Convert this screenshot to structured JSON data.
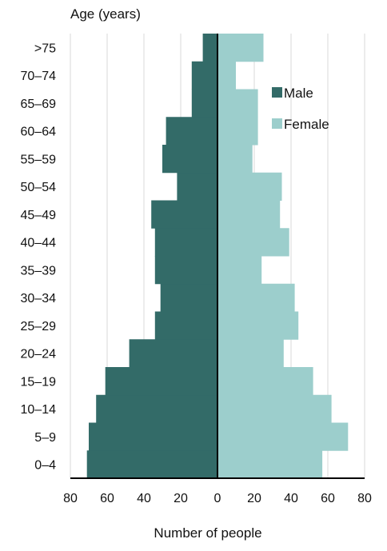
{
  "chart_data": {
    "type": "bar",
    "orientation": "horizontal-population-pyramid",
    "ylabel": "Age (years)",
    "xlabel": "Number of people",
    "categories": [
      "0–4",
      "5–9",
      "10–14",
      "15–19",
      "20–24",
      "25–29",
      "30–34",
      "35–39",
      "40–44",
      "45–49",
      "50–54",
      "55–59",
      "60–64",
      "65–69",
      "70–74",
      ">75"
    ],
    "series": [
      {
        "name": "Male",
        "color": "#336b68",
        "values": [
          71,
          70,
          66,
          61,
          48,
          34,
          31,
          34,
          34,
          36,
          22,
          30,
          28,
          14,
          14,
          8
        ]
      },
      {
        "name": "Female",
        "color": "#9ccecc",
        "values": [
          57,
          71,
          62,
          52,
          36,
          44,
          42,
          24,
          39,
          34,
          35,
          19,
          22,
          22,
          10,
          25
        ]
      }
    ],
    "x_ticks": [
      "80",
      "60",
      "40",
      "20",
      "0",
      "20",
      "40",
      "60",
      "80"
    ],
    "xlim": [
      -80,
      80
    ],
    "legend_position": "upper-right, inside plot",
    "grid": "vertical gridlines"
  }
}
